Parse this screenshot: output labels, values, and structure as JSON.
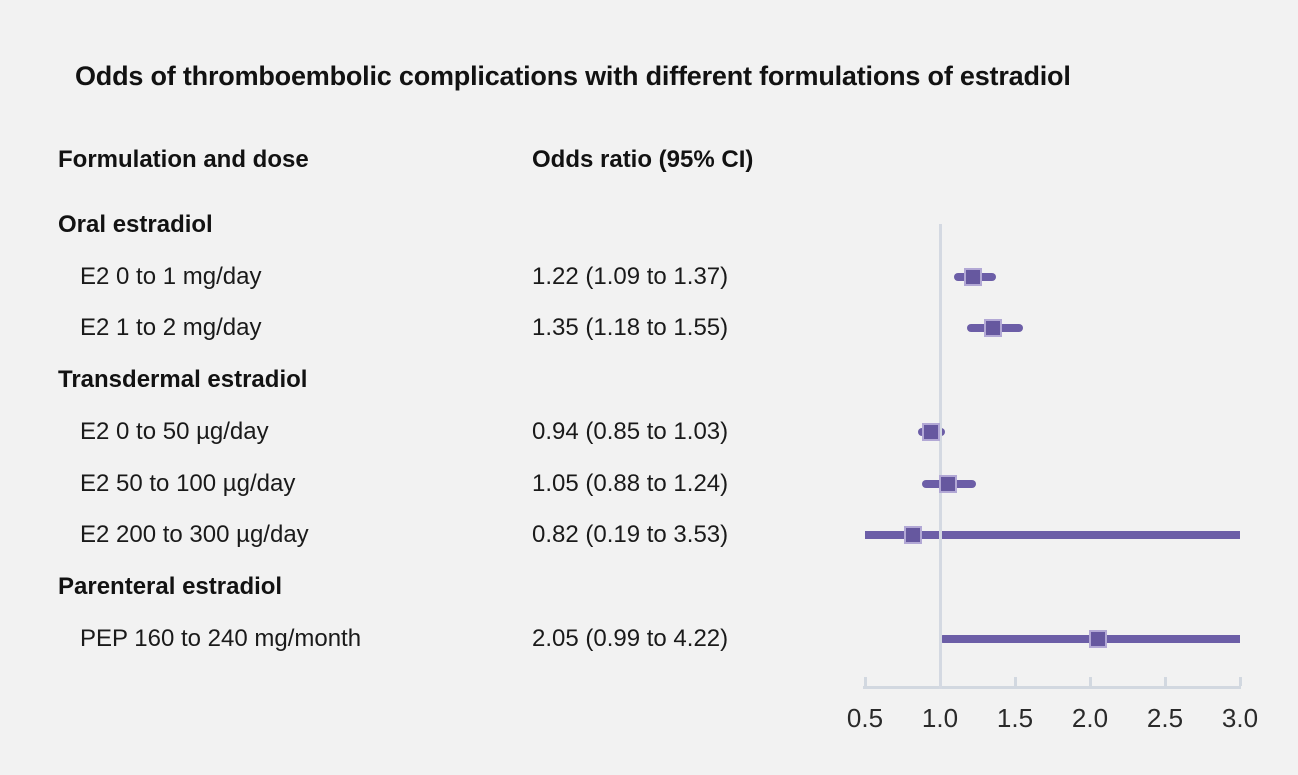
{
  "title": "Odds of thromboembolic complications with different formulations of estradiol",
  "columns": {
    "formulation": "Formulation and dose",
    "odds_ratio": "Odds ratio (95% CI)"
  },
  "colors": {
    "background": "#f2f2f2",
    "text": "#1a1a1a",
    "axis_line": "#d2d8e0",
    "reference_line": "#d4d9e2",
    "ci_line": "#6c5ea7",
    "marker_fill": "#66589f",
    "marker_border": "#b2a8d5"
  },
  "chart_data": {
    "type": "forest",
    "title": "Odds of thromboembolic complications with different formulations of estradiol",
    "xlabel": "",
    "axis": {
      "min": 0.5,
      "max": 3.0,
      "reference_value": 1.0,
      "tick_values": [
        0.5,
        1.0,
        1.5,
        2.0,
        2.5,
        3.0
      ],
      "tick_labels": [
        "0.5",
        "1.0",
        "1.5",
        "2.0",
        "2.5",
        "3.0"
      ],
      "grid": false
    },
    "groups": [
      {
        "label": "Oral estradiol",
        "items": [
          {
            "label": "E2 0 to 1 mg/day",
            "display": "1.22 (1.09 to 1.37)",
            "or": 1.22,
            "ci_low": 1.09,
            "ci_high": 1.37
          },
          {
            "label": "E2 1 to 2 mg/day",
            "display": "1.35 (1.18 to 1.55)",
            "or": 1.35,
            "ci_low": 1.18,
            "ci_high": 1.55
          }
        ]
      },
      {
        "label": "Transdermal estradiol",
        "items": [
          {
            "label": "E2 0 to 50 µg/day",
            "display": "0.94 (0.85 to 1.03)",
            "or": 0.94,
            "ci_low": 0.85,
            "ci_high": 1.03
          },
          {
            "label": "E2 50 to 100 µg/day",
            "display": "1.05 (0.88 to 1.24)",
            "or": 1.05,
            "ci_low": 0.88,
            "ci_high": 1.24
          },
          {
            "label": "E2 200 to 300 µg/day",
            "display": "0.82 (0.19 to 3.53)",
            "or": 0.82,
            "ci_low": 0.19,
            "ci_high": 3.53
          }
        ]
      },
      {
        "label": "Parenteral estradiol",
        "items": [
          {
            "label": "PEP 160 to 240 mg/month",
            "display": "2.05 (0.99 to 4.22)",
            "or": 2.05,
            "ci_low": 0.99,
            "ci_high": 4.22
          }
        ]
      }
    ]
  }
}
